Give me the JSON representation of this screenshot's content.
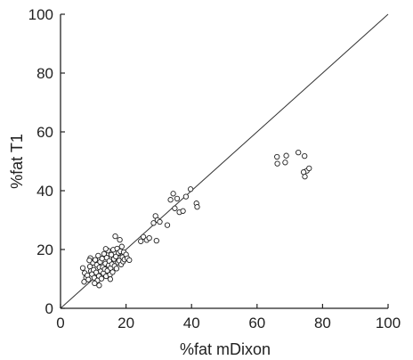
{
  "chart_data": {
    "type": "scatter",
    "title": "",
    "xlabel": "%fat mDixon",
    "ylabel": "%fat T1",
    "xlim": [
      0,
      100
    ],
    "ylim": [
      0,
      100
    ],
    "xticks": [
      0,
      20,
      40,
      60,
      80,
      100
    ],
    "yticks": [
      0,
      20,
      40,
      60,
      80,
      100
    ],
    "grid": false,
    "legend": "none",
    "reference_line": {
      "from": [
        0,
        0
      ],
      "to": [
        100,
        100
      ]
    },
    "marker": "open-circle",
    "colors": {
      "axis": "#222222",
      "marker_stroke": "#222222",
      "marker_fill": "#ffffff",
      "reference_line": "#333333"
    },
    "series": [
      {
        "points": [
          [
            6.8,
            13.7
          ],
          [
            7.4,
            12.0
          ],
          [
            7.8,
            10.5
          ],
          [
            8.2,
            11.2
          ],
          [
            8.5,
            9.8
          ],
          [
            9.0,
            14.2
          ],
          [
            9.1,
            17.1
          ],
          [
            9.3,
            12.7
          ],
          [
            9.6,
            11.6
          ],
          [
            9.9,
            15.5
          ],
          [
            10.1,
            13.1
          ],
          [
            10.3,
            10.4
          ],
          [
            10.6,
            16.5
          ],
          [
            10.9,
            12.2
          ],
          [
            11.1,
            14.8
          ],
          [
            11.3,
            9.5
          ],
          [
            11.5,
            17.9
          ],
          [
            11.7,
            11.0
          ],
          [
            11.9,
            13.9
          ],
          [
            12.1,
            15.8
          ],
          [
            12.3,
            12.6
          ],
          [
            12.5,
            10.1
          ],
          [
            12.7,
            16.9
          ],
          [
            12.9,
            14.0
          ],
          [
            13.1,
            11.9
          ],
          [
            13.3,
            18.5
          ],
          [
            13.5,
            13.3
          ],
          [
            13.7,
            15.2
          ],
          [
            13.9,
            10.9
          ],
          [
            14.1,
            17.2
          ],
          [
            14.3,
            12.8
          ],
          [
            14.5,
            19.6
          ],
          [
            14.7,
            14.6
          ],
          [
            14.9,
            16.1
          ],
          [
            15.1,
            11.5
          ],
          [
            15.3,
            13.7
          ],
          [
            15.5,
            18.2
          ],
          [
            15.7,
            15.0
          ],
          [
            15.9,
            12.3
          ],
          [
            16.1,
            19.9
          ],
          [
            16.3,
            16.8
          ],
          [
            16.5,
            14.4
          ],
          [
            16.7,
            24.5
          ],
          [
            16.9,
            17.6
          ],
          [
            17.1,
            13.5
          ],
          [
            17.3,
            20.3
          ],
          [
            17.5,
            15.6
          ],
          [
            17.7,
            18.9
          ],
          [
            17.9,
            16.2
          ],
          [
            18.1,
            23.3
          ],
          [
            18.3,
            19.4
          ],
          [
            18.5,
            14.9
          ],
          [
            18.7,
            21.0
          ],
          [
            18.9,
            17.4
          ],
          [
            19.1,
            15.9
          ],
          [
            19.3,
            19.1
          ],
          [
            19.5,
            16.6
          ],
          [
            20.0,
            18.3
          ],
          [
            20.4,
            17.0
          ],
          [
            21.0,
            16.4
          ],
          [
            10.4,
            8.5
          ],
          [
            11.8,
            7.8
          ],
          [
            7.2,
            9.0
          ],
          [
            8.8,
            16.3
          ],
          [
            15.2,
            9.9
          ],
          [
            13.8,
            20.2
          ],
          [
            24.5,
            22.8
          ],
          [
            25.3,
            24.3
          ],
          [
            26.3,
            23.2
          ],
          [
            27.1,
            23.9
          ],
          [
            28.4,
            29.0
          ],
          [
            29.0,
            31.4
          ],
          [
            29.6,
            30.0
          ],
          [
            30.3,
            29.4
          ],
          [
            32.6,
            28.3
          ],
          [
            33.6,
            36.9
          ],
          [
            34.4,
            39.0
          ],
          [
            34.9,
            34.0
          ],
          [
            35.6,
            37.3
          ],
          [
            36.3,
            32.7
          ],
          [
            37.4,
            33.1
          ],
          [
            38.3,
            38.0
          ],
          [
            39.7,
            40.5
          ],
          [
            41.5,
            35.7
          ],
          [
            41.7,
            34.5
          ],
          [
            29.3,
            23.0
          ],
          [
            66.1,
            51.5
          ],
          [
            66.2,
            49.2
          ],
          [
            68.6,
            49.6
          ],
          [
            68.9,
            51.9
          ],
          [
            72.6,
            53.0
          ],
          [
            74.5,
            51.8
          ],
          [
            74.6,
            44.8
          ],
          [
            75.2,
            46.8
          ],
          [
            75.9,
            47.6
          ],
          [
            74.2,
            46.3
          ]
        ]
      }
    ]
  }
}
